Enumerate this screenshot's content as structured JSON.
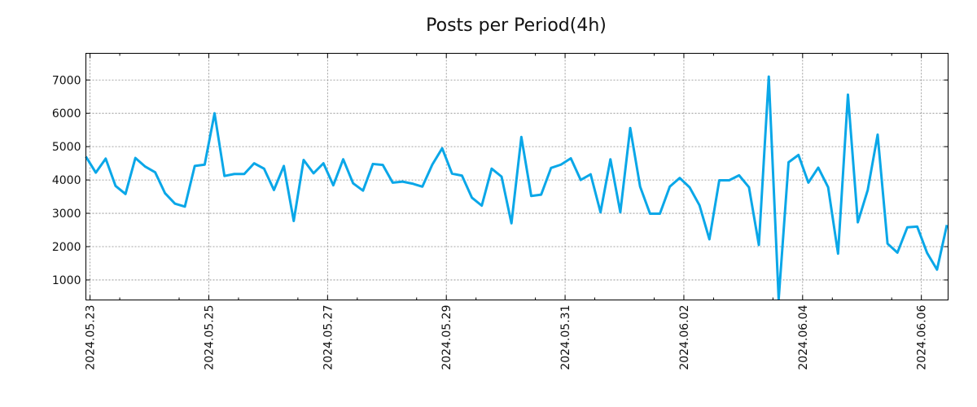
{
  "chart_data": {
    "type": "line",
    "title": "Posts per Period(4h)",
    "xlabel": "",
    "ylabel": "",
    "grid": true,
    "line_color": "#0aa7e8",
    "xlim_days": [
      -0.07,
      14.45
    ],
    "ylim": [
      400,
      7800
    ],
    "y_ticks": [
      1000,
      2000,
      3000,
      4000,
      5000,
      6000,
      7000
    ],
    "x_ticks": [
      {
        "day": 0,
        "label": "2024.05.23"
      },
      {
        "day": 2,
        "label": "2024.05.25"
      },
      {
        "day": 4,
        "label": "2024.05.27"
      },
      {
        "day": 6,
        "label": "2024.05.29"
      },
      {
        "day": 8,
        "label": "2024.05.31"
      },
      {
        "day": 10,
        "label": "2024.06.02"
      },
      {
        "day": 12,
        "label": "2024.06.04"
      },
      {
        "day": 14,
        "label": "2024.06.06"
      }
    ],
    "period_hours": 4,
    "start_day": -0.07,
    "series": [
      {
        "name": "Posts",
        "values": [
          4700,
          4220,
          4640,
          3820,
          3580,
          4660,
          4400,
          4230,
          3600,
          3290,
          3200,
          4420,
          4460,
          6000,
          4120,
          4180,
          4180,
          4500,
          4340,
          3700,
          4420,
          2770,
          4600,
          4200,
          4500,
          3840,
          4620,
          3900,
          3680,
          4480,
          4450,
          3920,
          3950,
          3890,
          3800,
          4460,
          4950,
          4190,
          4130,
          3470,
          3230,
          4340,
          4100,
          2700,
          5290,
          3520,
          3560,
          4360,
          4460,
          4650,
          4000,
          4170,
          3030,
          4620,
          3030,
          5560,
          3800,
          2990,
          2990,
          3800,
          4060,
          3780,
          3240,
          2220,
          3990,
          3990,
          4140,
          3780,
          2050,
          7100,
          420,
          4530,
          4750,
          3920,
          4370,
          3780,
          1790,
          6560,
          2730,
          3700,
          5360,
          2090,
          1820,
          2580,
          2600,
          1810,
          1310,
          2650
        ]
      }
    ]
  }
}
